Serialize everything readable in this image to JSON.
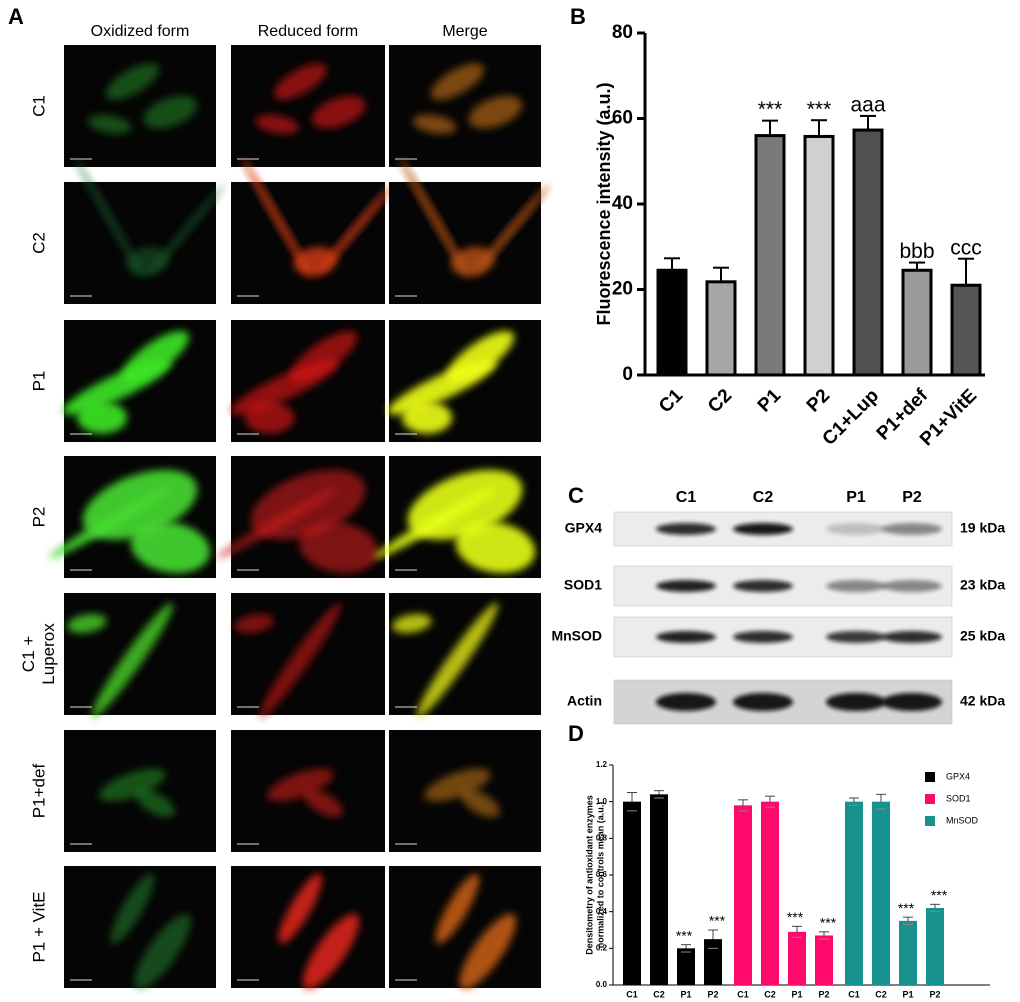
{
  "panel_a": {
    "label": "A",
    "columns": [
      "Oxidized form",
      "Reduced form",
      "Merge"
    ],
    "rows": [
      "C1",
      "C2",
      "P1",
      "P2",
      "C1 +\nLuperox",
      "P1+def",
      "P1 + VitE"
    ]
  },
  "panel_c": {
    "label": "C",
    "lanes": [
      "C1",
      "C2",
      "P1",
      "P2"
    ],
    "proteins": [
      {
        "name": "GPX4",
        "size": "19 kDa"
      },
      {
        "name": "SOD1",
        "size": "23 kDa"
      },
      {
        "name": "MnSOD",
        "size": "25 kDa"
      },
      {
        "name": "Actin",
        "size": "42 kDa"
      }
    ]
  },
  "chart_data": [
    {
      "type": "bar",
      "label": "B",
      "ylabel": "Fluorescence intensity (a.u.)",
      "categories": [
        "C1",
        "C2",
        "P1",
        "P2",
        "C1+Lup",
        "P1+def",
        "P1+VitE"
      ],
      "values": [
        24.5,
        21.8,
        56,
        55.8,
        57.3,
        24.5,
        21
      ],
      "errors": [
        2.8,
        3.3,
        3.5,
        3.8,
        3.3,
        1.8,
        6.2
      ],
      "colors": [
        "#000000",
        "#a6a6a6",
        "#7a7a7a",
        "#d0d0d0",
        "#505050",
        "#9a9a9a",
        "#555555"
      ],
      "annotations": [
        null,
        null,
        "***",
        "***",
        "aaa",
        "bbb",
        "ccc"
      ],
      "ylim": [
        0,
        80
      ],
      "yticks": [
        0,
        20,
        40,
        60,
        80
      ]
    },
    {
      "type": "grouped_bar",
      "label": "D",
      "ylabel": [
        "Densitometry of antioxidant enzymes",
        "normalized to  controls mean (a.u.)"
      ],
      "categories": [
        "C1",
        "C2",
        "P1",
        "P2"
      ],
      "series": [
        {
          "name": "GPX4",
          "color": "#000000",
          "values": [
            1.0,
            1.04,
            0.2,
            0.25
          ],
          "errors": [
            0.05,
            0.02,
            0.02,
            0.05
          ],
          "annotations": [
            null,
            null,
            "***",
            "***"
          ]
        },
        {
          "name": "SOD1",
          "color": "#ff0a6c",
          "values": [
            0.98,
            1.0,
            0.29,
            0.27
          ],
          "errors": [
            0.03,
            0.03,
            0.03,
            0.02
          ],
          "annotations": [
            null,
            null,
            "***",
            "***"
          ]
        },
        {
          "name": "MnSOD",
          "color": "#17928f",
          "values": [
            1.0,
            1.0,
            0.35,
            0.42
          ],
          "errors": [
            0.02,
            0.04,
            0.02,
            0.02
          ],
          "annotations": [
            null,
            null,
            "***",
            "***"
          ]
        }
      ],
      "ylim": [
        0,
        1.2
      ],
      "yticks": [
        {
          "value": 0,
          "label": "0.0"
        },
        0.2,
        0.4,
        0.6,
        0.8,
        {
          "value": 1,
          "label": "1.0"
        },
        1.2
      ]
    }
  ]
}
